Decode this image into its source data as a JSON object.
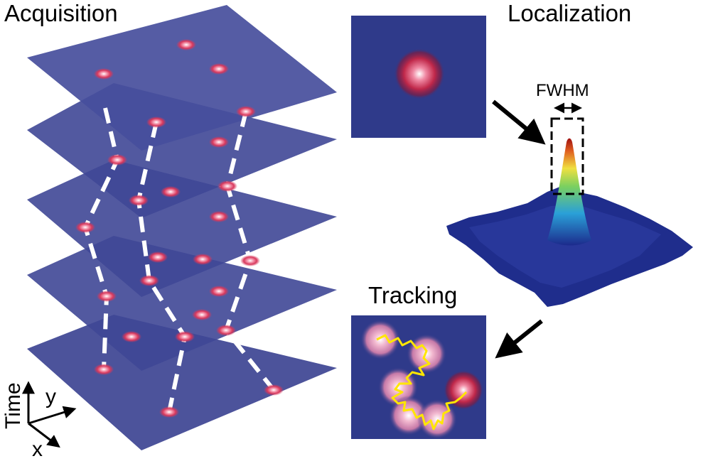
{
  "labels": {
    "acquisition": "Acquisition",
    "localization": "Localization",
    "tracking": "Tracking",
    "fwhm": "FWHM",
    "time_axis": "Time",
    "y_axis": "y",
    "x_axis": "x"
  },
  "colors": {
    "plane": "#3d4492",
    "plane_dark": "#2a3078",
    "square_bg": "#2f3a8a",
    "spot_core": "#ffffff",
    "spot_mid": "#e0506e",
    "spot_edge": "#a01030",
    "track": "#ffe600",
    "dash": "#ffffff"
  },
  "icons": {
    "arrow_to_surface": "arrow-down-right-icon",
    "arrow_to_tracking": "arrow-down-left-icon",
    "fwhm_arrow": "double-headed-arrow-icon"
  }
}
